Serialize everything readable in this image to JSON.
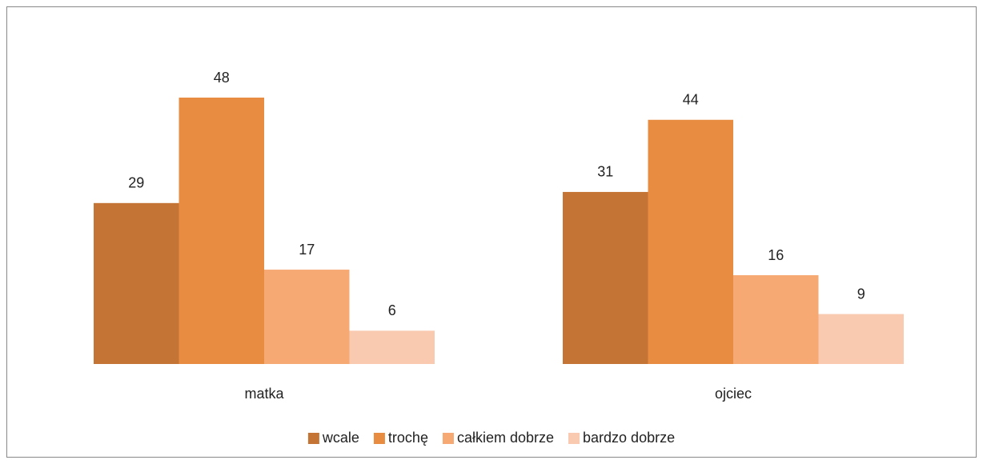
{
  "chart_data": {
    "type": "bar",
    "categories": [
      "matka",
      "ojciec"
    ],
    "series": [
      {
        "name": "wcale",
        "color": "#c47535",
        "values": [
          29,
          31
        ]
      },
      {
        "name": "trochę",
        "color": "#e88c41",
        "values": [
          48,
          44
        ]
      },
      {
        "name": "całkiem dobrze",
        "color": "#f7a973",
        "values": [
          17,
          16
        ]
      },
      {
        "name": "bardzo dobrze",
        "color": "#f9c9b0",
        "values": [
          6,
          9
        ]
      }
    ],
    "legend": "bottom"
  }
}
